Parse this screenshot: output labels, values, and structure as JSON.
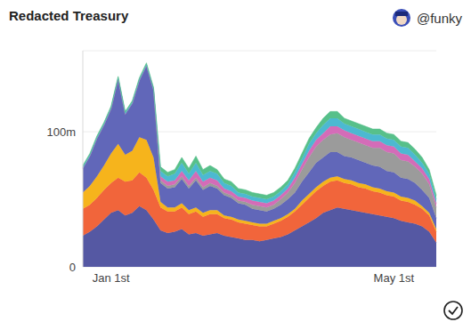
{
  "chart_data": {
    "type": "area",
    "title": "Redacted Treasury",
    "annotations": [
      "@funky"
    ],
    "stacked": true,
    "grid": true,
    "categories": [
      null,
      null,
      null,
      null,
      "Jan 1st",
      null,
      null,
      null,
      null,
      null,
      null,
      null,
      null,
      null,
      null,
      null,
      null,
      null,
      null,
      null,
      null,
      null,
      null,
      null,
      null,
      null,
      null,
      null,
      null,
      null,
      null,
      null,
      null,
      null,
      null,
      null,
      null,
      null,
      null,
      null,
      null,
      null,
      null,
      null,
      "May 1st",
      null,
      null,
      null,
      null,
      null,
      null
    ],
    "ylim": [
      0,
      160
    ],
    "yticks": [
      0,
      {
        "value": 100,
        "label": "100m"
      }
    ],
    "series": [
      {
        "color": "#5558a3",
        "values": [
          23,
          26,
          30,
          35,
          40,
          42,
          38,
          40,
          45,
          42,
          35,
          27,
          25,
          26,
          28,
          24,
          25,
          23,
          24,
          25,
          23,
          22,
          21,
          20,
          20,
          19,
          20,
          21,
          22,
          24,
          27,
          30,
          33,
          36,
          40,
          42,
          44,
          43,
          42,
          41,
          40,
          39,
          38,
          37,
          36,
          34,
          33,
          32,
          30,
          26,
          18
        ]
      },
      {
        "color": "#f1653b",
        "values": [
          20,
          20,
          21,
          22,
          22,
          24,
          25,
          24,
          25,
          24,
          22,
          17,
          16,
          15,
          16,
          15,
          16,
          14,
          15,
          14,
          13,
          13,
          12,
          12,
          11,
          11,
          10,
          11,
          12,
          13,
          14,
          16,
          18,
          20,
          20,
          21,
          20,
          19,
          19,
          18,
          18,
          17,
          17,
          16,
          16,
          15,
          15,
          14,
          13,
          12,
          8
        ]
      },
      {
        "color": "#f6b41c",
        "values": [
          12,
          14,
          16,
          18,
          22,
          25,
          20,
          22,
          26,
          28,
          24,
          4,
          3,
          3,
          3,
          3,
          3,
          3,
          3,
          3,
          2,
          2,
          2,
          2,
          2,
          2,
          2,
          2,
          2,
          2,
          2,
          3,
          3,
          3,
          3,
          3,
          3,
          3,
          3,
          3,
          3,
          3,
          3,
          3,
          3,
          3,
          3,
          3,
          2,
          2,
          2
        ]
      },
      {
        "color": "#6167b9",
        "values": [
          18,
          22,
          28,
          30,
          33,
          48,
          30,
          35,
          42,
          55,
          50,
          14,
          14,
          15,
          18,
          16,
          20,
          17,
          18,
          16,
          15,
          14,
          12,
          12,
          10,
          10,
          9,
          9,
          10,
          11,
          12,
          14,
          16,
          18,
          18,
          19,
          18,
          17,
          17,
          17,
          16,
          16,
          16,
          15,
          15,
          14,
          14,
          13,
          12,
          11,
          8
        ]
      },
      {
        "color": "#9b9b9b",
        "values": [
          0,
          0,
          0,
          0,
          0,
          0,
          0,
          0,
          0,
          0,
          0,
          2,
          2,
          2,
          2,
          2,
          2,
          2,
          2,
          2,
          2,
          2,
          2,
          2,
          3,
          3,
          3,
          3,
          4,
          5,
          7,
          9,
          11,
          12,
          13,
          13,
          14,
          14,
          13,
          13,
          13,
          13,
          14,
          14,
          14,
          13,
          13,
          12,
          12,
          10,
          8
        ]
      },
      {
        "color": "#d46cb8",
        "values": [
          0,
          0,
          0,
          0,
          0,
          0,
          0,
          0,
          0,
          0,
          0,
          3,
          3,
          3,
          4,
          4,
          5,
          4,
          4,
          4,
          3,
          3,
          3,
          3,
          3,
          3,
          3,
          3,
          3,
          3,
          4,
          4,
          5,
          5,
          5,
          6,
          5,
          5,
          5,
          5,
          5,
          5,
          5,
          5,
          5,
          5,
          5,
          4,
          4,
          4,
          3
        ]
      },
      {
        "color": "#4cb9d1",
        "values": [
          1,
          1,
          1,
          1,
          1,
          1,
          1,
          1,
          1,
          1,
          1,
          4,
          4,
          5,
          6,
          5,
          6,
          5,
          5,
          5,
          4,
          4,
          3,
          3,
          3,
          3,
          3,
          3,
          3,
          3,
          4,
          4,
          5,
          5,
          6,
          6,
          6,
          5,
          5,
          5,
          5,
          5,
          5,
          5,
          5,
          5,
          5,
          5,
          4,
          4,
          3
        ]
      },
      {
        "color": "#57c08a",
        "values": [
          1,
          1,
          1,
          1,
          1,
          1,
          1,
          1,
          1,
          1,
          1,
          3,
          3,
          3,
          4,
          4,
          5,
          4,
          4,
          3,
          3,
          3,
          3,
          3,
          3,
          3,
          3,
          3,
          3,
          3,
          3,
          4,
          4,
          4,
          5,
          5,
          5,
          4,
          4,
          4,
          4,
          4,
          4,
          4,
          4,
          4,
          4,
          4,
          4,
          3,
          3
        ]
      }
    ]
  }
}
